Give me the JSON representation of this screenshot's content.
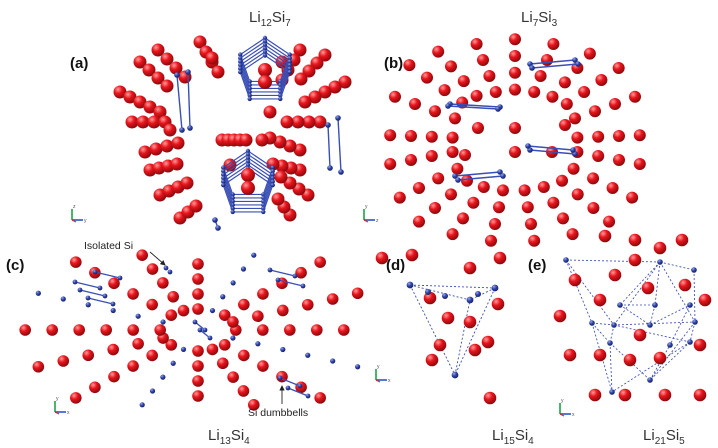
{
  "figure": {
    "panels": [
      {
        "id": "a",
        "label": "(a)",
        "title_main": "Li",
        "title_sub1": "12",
        "title_mid": "Si",
        "title_sub2": "7"
      },
      {
        "id": "b",
        "label": "(b)",
        "title_main": "Li",
        "title_sub1": "7",
        "title_mid": "Si",
        "title_sub2": "3"
      },
      {
        "id": "c",
        "label": "(c)",
        "title_main": "Li",
        "title_sub1": "13",
        "title_mid": "Si",
        "title_sub2": "4"
      },
      {
        "id": "d",
        "label": "(d)",
        "title_main": "Li",
        "title_sub1": "15",
        "title_mid": "Si",
        "title_sub2": "4"
      },
      {
        "id": "e",
        "label": "(e)",
        "title_main": "Li",
        "title_sub1": "21",
        "title_mid": "Si",
        "title_sub2": "5"
      }
    ],
    "annotations": {
      "isolated": "Isolated Si",
      "dumbbells": "Si dumbbells"
    },
    "axis_labels": {
      "z": "z",
      "y": "y",
      "x": "x"
    },
    "colors": {
      "li_atom": "#e8141b",
      "si_atom": "#2f44a6",
      "bond": "#3a4fb5",
      "axis_z": "#1aa34a",
      "axis_y": "#2b55c8",
      "axis_x": "#d42a2a"
    }
  }
}
